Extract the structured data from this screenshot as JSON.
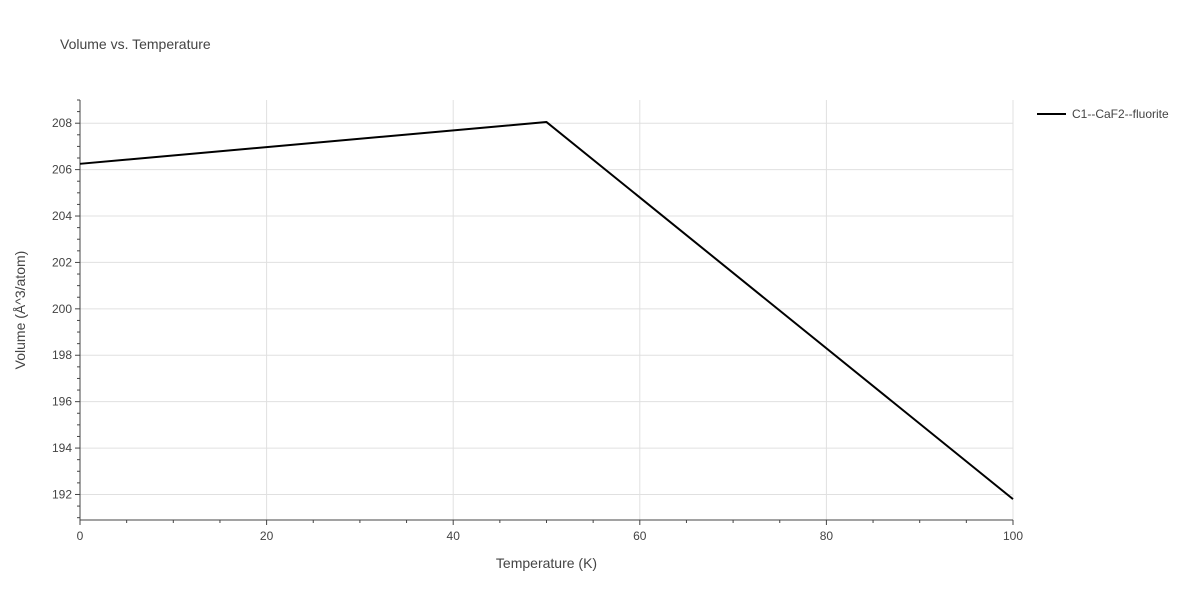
{
  "chart_data": {
    "type": "line",
    "title": "Volume vs. Temperature",
    "xlabel": "Temperature (K)",
    "ylabel": "Volume (Å^3/atom)",
    "xlim": [
      0,
      100
    ],
    "ylim": [
      190.9,
      209.0
    ],
    "xticks": [
      0,
      20,
      40,
      60,
      80,
      100
    ],
    "yticks": [
      192,
      194,
      196,
      198,
      200,
      202,
      204,
      206,
      208
    ],
    "x_minor_step": 5,
    "y_minor_step": 0.5,
    "grid": true,
    "legend_position": "top-right",
    "series": [
      {
        "name": "C1--CaF2--fluorite",
        "color": "#000000",
        "x": [
          0,
          50,
          100
        ],
        "y": [
          206.25,
          208.05,
          191.8
        ]
      }
    ]
  },
  "colors": {
    "grid": "#e0e0e0",
    "axis": "#444444",
    "text": "#444444",
    "background": "#ffffff"
  }
}
